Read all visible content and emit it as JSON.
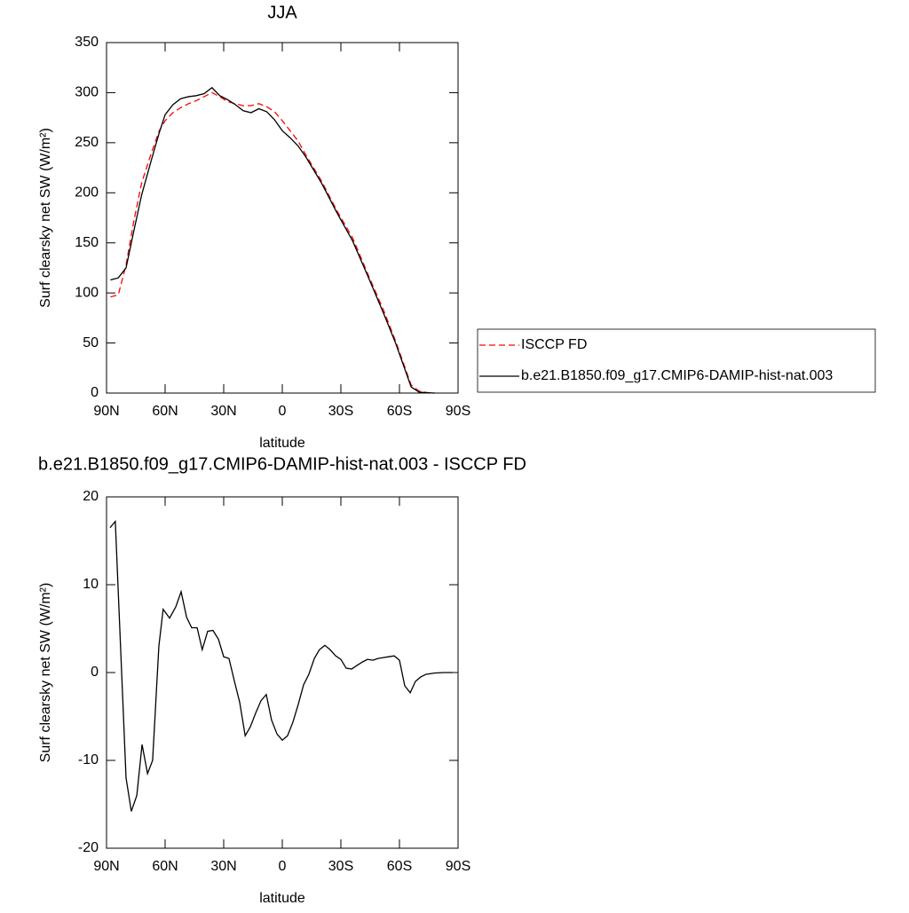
{
  "chart_data": [
    {
      "type": "line",
      "title": "JJA",
      "xlabel": "latitude",
      "ylabel": "Surf clearsky net SW (W/m²)",
      "x": [
        88,
        84,
        80,
        76,
        72,
        67,
        63,
        60,
        56,
        52,
        48,
        44,
        40,
        36,
        32,
        28,
        24,
        20,
        16,
        12,
        8,
        4,
        0,
        -4,
        -8,
        -12,
        -20,
        -28,
        -36,
        -44,
        -52,
        -58,
        -62,
        -66,
        -70,
        -74,
        -78
      ],
      "series": [
        {
          "name": "ISCCP FD",
          "color": "#ff0000",
          "line_style": "dashed",
          "values": [
            96,
            98,
            128,
            172,
            210,
            240,
            262,
            272,
            280,
            285,
            289,
            292,
            296,
            300,
            296,
            291,
            289,
            287,
            287,
            289,
            286,
            281,
            272,
            262,
            252,
            238,
            212,
            182,
            155,
            118,
            82,
            52,
            30,
            8,
            2,
            0.5,
            0
          ]
        },
        {
          "name": "b.e21.B1850.f09_g17.CMIP6-DAMIP-hist-nat.003",
          "color": "#000000",
          "line_style": "solid",
          "values": [
            113,
            115,
            125,
            162,
            198,
            233,
            260,
            278,
            288,
            294,
            296,
            297,
            299,
            305,
            297,
            293,
            288,
            282,
            280,
            284,
            281,
            273,
            262,
            255,
            247,
            236,
            210,
            180,
            152,
            116,
            79,
            50,
            28,
            6,
            1,
            0.3,
            0
          ]
        }
      ],
      "xlim": [
        90,
        -90
      ],
      "xticks": [
        {
          "value": 90,
          "label": "90N"
        },
        {
          "value": 60,
          "label": "60N"
        },
        {
          "value": 30,
          "label": "30N"
        },
        0,
        {
          "value": -30,
          "label": "30S"
        },
        {
          "value": -60,
          "label": "60S"
        },
        {
          "value": -90,
          "label": "90S"
        }
      ],
      "ylim": [
        0,
        350
      ],
      "yticks": [
        0,
        50,
        100,
        150,
        200,
        250,
        300,
        350
      ],
      "legend": "right"
    },
    {
      "type": "line",
      "title": "b.e21.B1850.f09_g17.CMIP6-DAMIP-hist-nat.003 - ISCCP FD",
      "xlabel": "latitude",
      "ylabel": "Surf clearsky net SW (W/m²)",
      "x": [
        88.2,
        85.5,
        80,
        77.3,
        74.5,
        71.8,
        69,
        66.4,
        63.2,
        61,
        57.7,
        54.5,
        51.8,
        49,
        46.4,
        43.6,
        41,
        38.2,
        35.5,
        32.7,
        30,
        27.3,
        24.5,
        21.8,
        19,
        16.4,
        13.6,
        10.9,
        8.2,
        5.5,
        2.7,
        0,
        -2.7,
        -5.5,
        -8.2,
        -10.9,
        -13.6,
        -16.4,
        -19,
        -21.8,
        -24.5,
        -27.3,
        -30,
        -32.7,
        -35.5,
        -38.2,
        -41,
        -43.6,
        -46.4,
        -49,
        -51.8,
        -54.5,
        -57.3,
        -60,
        -62.7,
        -65.5,
        -68.2,
        -70.9,
        -73.6,
        -78.2,
        -82.7,
        -87.3
      ],
      "values": [
        16.5,
        17.2,
        -12,
        -15.8,
        -14,
        -8.2,
        -11.5,
        -10,
        3,
        7.2,
        6.2,
        7.5,
        9.2,
        6.3,
        5.1,
        5.1,
        2.6,
        4.7,
        4.8,
        3.8,
        1.8,
        1.6,
        -1,
        -3.4,
        -7.2,
        -6.2,
        -4.6,
        -3.2,
        -2.5,
        -5.4,
        -7,
        -7.7,
        -7.2,
        -5.6,
        -3.6,
        -1.4,
        -0.2,
        1.6,
        2.6,
        3.1,
        2.6,
        1.9,
        1.5,
        0.5,
        0.4,
        0.8,
        1.2,
        1.5,
        1.4,
        1.6,
        1.7,
        1.8,
        1.9,
        1.4,
        -1.5,
        -2.3,
        -1,
        -0.5,
        -0.2,
        -0.05,
        0,
        0
      ],
      "color": "#000000",
      "xlim": [
        90,
        -90
      ],
      "xticks": [
        {
          "value": 90,
          "label": "90N"
        },
        {
          "value": 60,
          "label": "60N"
        },
        {
          "value": 30,
          "label": "30N"
        },
        0,
        {
          "value": -30,
          "label": "30S"
        },
        {
          "value": -60,
          "label": "60S"
        },
        {
          "value": -90,
          "label": "90S"
        }
      ],
      "ylim": [
        -20,
        20
      ],
      "yticks": [
        -20,
        -10,
        0,
        10,
        20
      ]
    }
  ]
}
